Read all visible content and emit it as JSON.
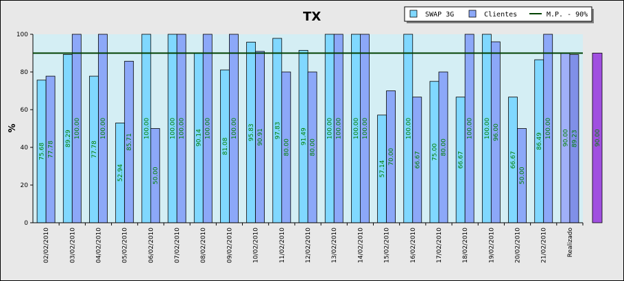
{
  "chart_data": {
    "type": "bar",
    "title": "TX",
    "ylabel": "%",
    "xlabel": "",
    "ylim": [
      0,
      100
    ],
    "yticks": [
      0,
      20,
      40,
      60,
      80,
      100
    ],
    "grid": false,
    "legend_position": "top-right",
    "categories": [
      "02/02/2010",
      "03/02/2010",
      "04/02/2010",
      "05/02/2010",
      "06/02/2010",
      "07/02/2010",
      "08/02/2010",
      "09/02/2010",
      "10/02/2010",
      "11/02/2010",
      "12/02/2010",
      "13/02/2010",
      "14/02/2010",
      "15/02/2010",
      "16/02/2010",
      "17/02/2010",
      "18/02/2010",
      "19/02/2010",
      "20/02/2010",
      "21/02/2010",
      "Realizado"
    ],
    "series": [
      {
        "name": "SWAP 3G",
        "color": "#80d8ff",
        "values": [
          75.68,
          89.29,
          77.78,
          52.94,
          100.0,
          100.0,
          90.14,
          81.08,
          95.83,
          97.83,
          91.49,
          100.0,
          100.0,
          57.14,
          100.0,
          75.0,
          66.67,
          100.0,
          66.67,
          86.49,
          90.0
        ]
      },
      {
        "name": "Clientes",
        "color": "#8ca8f8",
        "values": [
          77.78,
          100.0,
          100.0,
          85.71,
          50.0,
          100.0,
          100.0,
          100.0,
          90.91,
          80.0,
          80.0,
          100.0,
          100.0,
          70.0,
          66.67,
          80.0,
          100.0,
          96.0,
          50.0,
          100.0,
          89.23
        ]
      }
    ],
    "value_labels": {
      "SWAP 3G": [
        "75.68",
        "89.29",
        "77.78",
        "52.94",
        "100.00",
        "100.00",
        "90.14",
        "81.08",
        "95.83",
        "97.83",
        "91.49",
        "100.00",
        "100.00",
        "57.14",
        "100.00",
        "75.00",
        "66.67",
        "100.00",
        "66.67",
        "86.49",
        "90.00"
      ],
      "Clientes": [
        "77.78",
        "100.00",
        "100.00",
        "85.71",
        "50.00",
        "100.00",
        "100.00",
        "100.00",
        "90.91",
        "80.00",
        "80.00",
        "100.00",
        "100.00",
        "70.00",
        "66.67",
        "80.00",
        "100.00",
        "96.00",
        "50.00",
        "100.00",
        "89.23"
      ]
    },
    "realizado_colors": [
      "#a0b0f8",
      "#8090e8"
    ],
    "target_line": {
      "name": "M.P. - 90%",
      "value": 90,
      "color": "#004000"
    },
    "side_bar": {
      "value": 90.0,
      "label": "90.00",
      "color": "#a050e0"
    },
    "colors": {
      "plot_bg": "#d4eef4",
      "frame_bg": "#e8e8e8"
    }
  }
}
